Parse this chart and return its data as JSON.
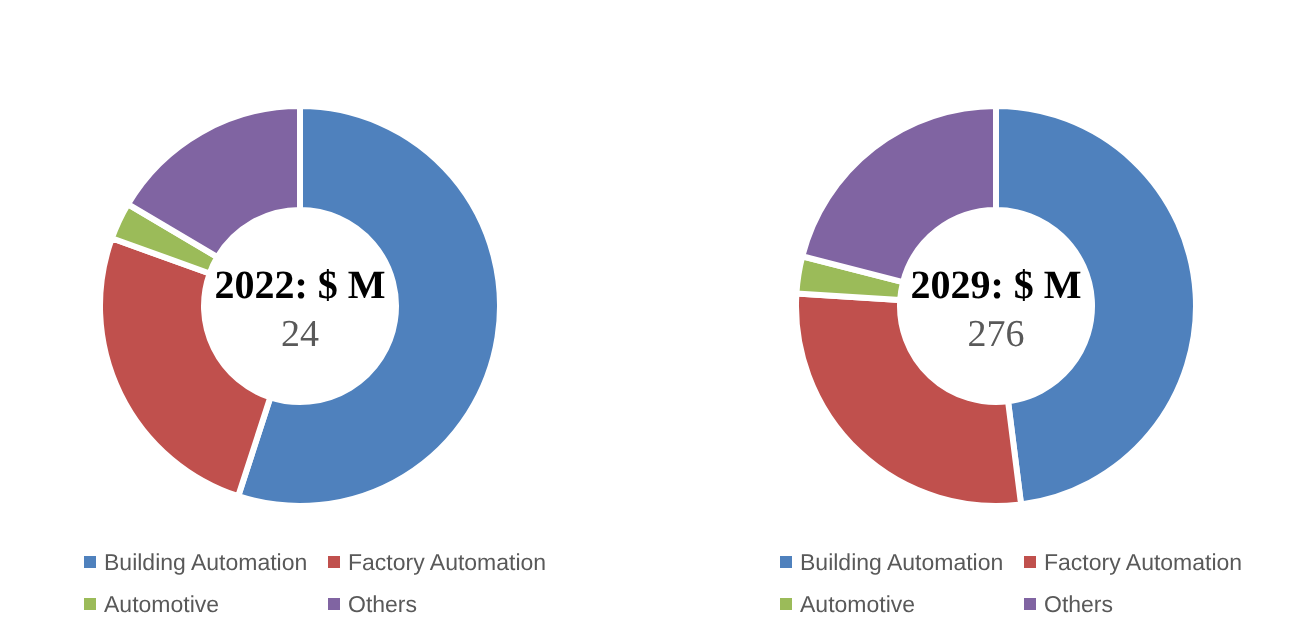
{
  "chart_data": [
    {
      "type": "donut",
      "title": "2022: $ M",
      "subtitle": "24",
      "categories": [
        "Building Automation",
        "Factory Automation",
        "Automotive",
        "Others"
      ],
      "values": [
        55,
        25.5,
        3,
        16.5
      ],
      "colors": [
        "#4f81bd",
        "#c0504d",
        "#9bbb59",
        "#8064a2"
      ],
      "legend": "bottom"
    },
    {
      "type": "donut",
      "title": "2029: $ M",
      "subtitle": "276",
      "categories": [
        "Building Automation",
        "Factory Automation",
        "Automotive",
        "Others"
      ],
      "values": [
        48,
        28,
        3,
        21
      ],
      "colors": [
        "#4f81bd",
        "#c0504d",
        "#9bbb59",
        "#8064a2"
      ],
      "legend": "bottom"
    }
  ]
}
